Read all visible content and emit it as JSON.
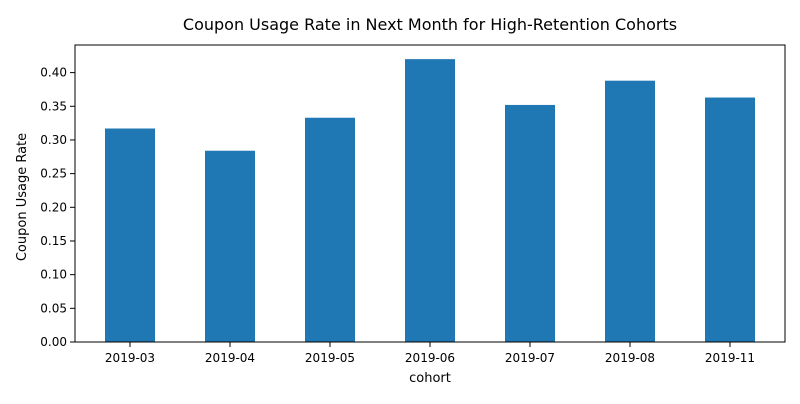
{
  "chart_data": {
    "type": "bar",
    "title": "Coupon Usage Rate in Next Month for High-Retention Cohorts",
    "xlabel": "cohort",
    "ylabel": "Coupon Usage Rate",
    "categories": [
      "2019-03",
      "2019-04",
      "2019-05",
      "2019-06",
      "2019-07",
      "2019-08",
      "2019-11"
    ],
    "values": [
      0.317,
      0.284,
      0.333,
      0.42,
      0.352,
      0.388,
      0.363
    ],
    "ylim": [
      0,
      0.441
    ],
    "yticks": [
      "0.00",
      "0.05",
      "0.10",
      "0.15",
      "0.20",
      "0.25",
      "0.30",
      "0.35",
      "0.40"
    ],
    "grid": false,
    "bar_color": "#1f77b4"
  }
}
